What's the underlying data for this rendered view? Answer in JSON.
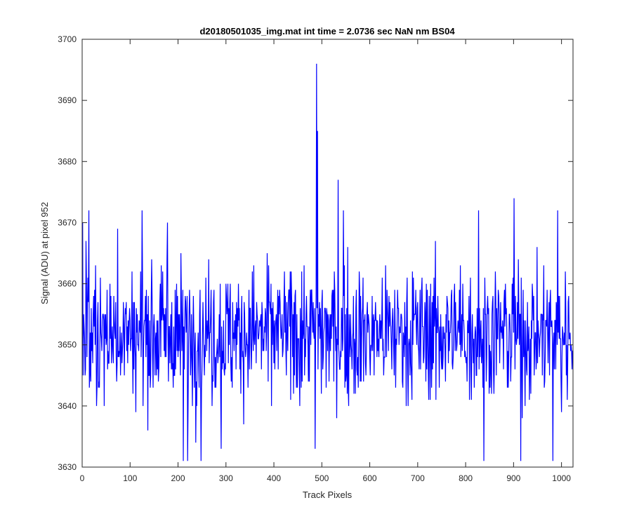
{
  "chart_data": {
    "type": "line",
    "title": "d20180501035_img.mat int time = 2.0736 sec  NaN nm BS04",
    "xlabel": "Track Pixels",
    "ylabel": "Signal (ADU) at pixel 952",
    "xlim": [
      0,
      1024
    ],
    "ylim": [
      3630,
      3700
    ],
    "xticks": [
      0,
      100,
      200,
      300,
      400,
      500,
      600,
      700,
      800,
      900,
      1000
    ],
    "yticks": [
      3630,
      3640,
      3650,
      3660,
      3670,
      3680,
      3690,
      3700
    ],
    "grid": false,
    "box": true,
    "series": [
      {
        "color": "#0000ff",
        "x_start": 1,
        "x_step": 1,
        "count": 1024,
        "mean": 3652,
        "spread": 5.5,
        "peaks": [
          {
            "x": 1,
            "y": 3670
          },
          {
            "x": 14,
            "y": 3672
          },
          {
            "x": 74,
            "y": 3669
          },
          {
            "x": 125,
            "y": 3672
          },
          {
            "x": 178,
            "y": 3670
          },
          {
            "x": 211,
            "y": 3631
          },
          {
            "x": 220,
            "y": 3631
          },
          {
            "x": 248,
            "y": 3631
          },
          {
            "x": 290,
            "y": 3633
          },
          {
            "x": 486,
            "y": 3633
          },
          {
            "x": 489,
            "y": 3696
          },
          {
            "x": 491,
            "y": 3685
          },
          {
            "x": 534,
            "y": 3677
          },
          {
            "x": 545,
            "y": 3672
          },
          {
            "x": 827,
            "y": 3672
          },
          {
            "x": 838,
            "y": 3631
          },
          {
            "x": 901,
            "y": 3674
          },
          {
            "x": 915,
            "y": 3631
          },
          {
            "x": 982,
            "y": 3631
          },
          {
            "x": 992,
            "y": 3672
          },
          {
            "x": 1000,
            "y": 3639
          }
        ]
      }
    ]
  }
}
